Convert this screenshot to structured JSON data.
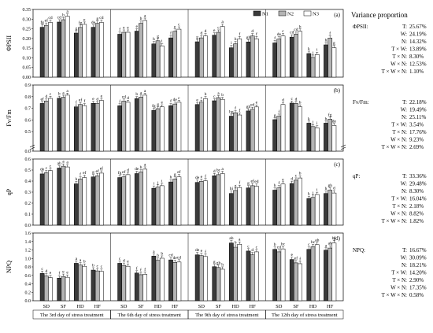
{
  "legend": [
    "N1",
    "N2",
    "N3"
  ],
  "variance_title": "Variance proportion",
  "groups": [
    "SD",
    "SF",
    "HD",
    "HF"
  ],
  "days": [
    "The 3rd day of stress treatment",
    "The 6th day of stress treatment",
    "The 9th day of stress treatment",
    "The 12th day of stress treatment"
  ],
  "colors": {
    "N1": "#3a3a3a",
    "N2": "#b4b4b4",
    "N3": "#ffffff"
  },
  "chart_data": [
    {
      "type": "bar",
      "tag": "(a)",
      "ylabel": "ΦPSII",
      "ylim": [
        0,
        0.35
      ],
      "yticks": [
        0.0,
        0.05,
        0.1,
        0.15,
        0.2,
        0.25,
        0.3,
        0.35
      ],
      "tick_labels": [
        "0.00",
        "0.05",
        "0.10",
        "0.15",
        "0.20",
        "0.25",
        "0.30",
        "0.35"
      ],
      "values": [
        [
          [
            0.258,
            0.268,
            0.283
          ],
          [
            0.285,
            0.297,
            0.315
          ],
          [
            0.228,
            0.257,
            0.273
          ],
          [
            0.258,
            0.278,
            0.283
          ]
        ],
        [
          [
            0.222,
            0.232,
            0.232
          ],
          [
            0.238,
            0.278,
            0.293
          ],
          [
            0.172,
            0.188,
            0.162
          ],
          [
            0.203,
            0.237,
            0.248
          ]
        ],
        [
          [
            0.183,
            0.203,
            0.213
          ],
          [
            0.217,
            0.232,
            0.262
          ],
          [
            0.152,
            0.172,
            0.198
          ],
          [
            0.182,
            0.213,
            0.198
          ]
        ],
        [
          [
            0.177,
            0.197,
            0.213
          ],
          [
            0.207,
            0.222,
            0.237
          ],
          [
            0.122,
            0.102,
            0.117
          ],
          [
            0.167,
            0.202,
            0.152
          ]
        ]
      ],
      "letters": [
        [
          [
            "fg",
            "ef",
            "cd"
          ],
          [
            "cd",
            "b",
            "a"
          ],
          [
            "g",
            "fg",
            "e"
          ],
          [
            "de",
            "g",
            "cd"
          ]
        ],
        [
          [
            "f",
            "e",
            "e"
          ],
          [
            "e",
            "b",
            "a"
          ],
          [
            "h",
            "g",
            "i"
          ],
          [
            "f",
            "e",
            "c"
          ]
        ],
        [
          [
            "g",
            "d",
            "d"
          ],
          [
            "e",
            "c",
            "a"
          ],
          [
            "i",
            "h",
            "f"
          ],
          [
            "gh",
            "d",
            "f"
          ]
        ],
        [
          [
            "f",
            "de",
            "c"
          ],
          [
            "cd",
            "cd",
            "b"
          ],
          [
            "k",
            "j",
            "i"
          ],
          [
            "h",
            "f",
            "g"
          ]
        ]
      ],
      "variance": [
        [
          "T:",
          "25.67%"
        ],
        [
          "W:",
          "24.19%"
        ],
        [
          "N:",
          "14.32%"
        ],
        [
          "T × W:",
          "13.89%"
        ],
        [
          "T × N:",
          "8.30%"
        ],
        [
          "W × N:",
          "12.53%"
        ],
        [
          "T × W × N:",
          "1.10%"
        ]
      ],
      "variance_label": "ΦPSII:"
    },
    {
      "type": "bar",
      "tag": "(b)",
      "ylabel": "Fv/Fm",
      "ylim": [
        0.4,
        0.9
      ],
      "axis_break": true,
      "yticks": [
        0.0,
        0.5,
        0.6,
        0.7,
        0.8,
        0.9
      ],
      "tick_labels": [
        "0.0",
        "0.5",
        "0.6",
        "0.7",
        "0.8",
        "0.9"
      ],
      "values": [
        [
          [
            0.742,
            0.763,
            0.785
          ],
          [
            0.787,
            0.795,
            0.813
          ],
          [
            0.713,
            0.733,
            0.723
          ],
          [
            0.743,
            0.742,
            0.768
          ]
        ],
        [
          [
            0.722,
            0.762,
            0.752
          ],
          [
            0.783,
            0.796,
            0.813
          ],
          [
            0.683,
            0.697,
            0.713
          ],
          [
            0.723,
            0.737,
            0.752
          ]
        ],
        [
          [
            0.733,
            0.753,
            0.783
          ],
          [
            0.765,
            0.792,
            0.777
          ],
          [
            0.633,
            0.662,
            0.643
          ],
          [
            0.678,
            0.692,
            0.712
          ]
        ],
        [
          [
            0.603,
            0.633,
            0.733
          ],
          [
            0.745,
            0.742,
            0.713
          ],
          [
            0.573,
            0.543,
            0.533
          ],
          [
            0.573,
            0.607,
            0.553
          ]
        ]
      ],
      "letters": [
        [
          [
            "ef",
            "d",
            "c"
          ],
          [
            "b",
            "a",
            "a"
          ],
          [
            "f",
            "ef",
            "f"
          ],
          [
            "e",
            "d",
            "e"
          ]
        ],
        [
          [
            "f",
            "cd",
            "d"
          ],
          [
            "b",
            "a",
            "a"
          ],
          [
            "fg",
            "g",
            "e"
          ],
          [
            "f",
            "de",
            "c"
          ]
        ],
        [
          [
            "e",
            "c",
            "b"
          ],
          [
            "c",
            "a",
            "b"
          ],
          [
            "hg",
            "f",
            "f"
          ],
          [
            "gh",
            "ed",
            "e"
          ]
        ],
        [
          [
            "g",
            "f",
            "d"
          ],
          [
            "c",
            "d",
            "b"
          ],
          [
            "k",
            "j",
            "i"
          ],
          [
            "h",
            "fg",
            "de"
          ]
        ]
      ],
      "variance": [
        [
          "T:",
          "22.18%"
        ],
        [
          "W:",
          "19.49%"
        ],
        [
          "N:",
          "25.11%"
        ],
        [
          "T × W:",
          "3.54%"
        ],
        [
          "T × N:",
          "17.76%"
        ],
        [
          "W × N:",
          "9.23%"
        ],
        [
          "T × W × N:",
          "2.69%"
        ]
      ],
      "variance_label": "Fv/Fm:"
    },
    {
      "type": "bar",
      "tag": "(c)",
      "ylabel": "qP",
      "ylim": [
        0,
        0.6
      ],
      "yticks": [
        0.0,
        0.1,
        0.2,
        0.3,
        0.4,
        0.5,
        0.6
      ],
      "tick_labels": [
        "0.0",
        "0.1",
        "0.2",
        "0.3",
        "0.4",
        "0.5",
        "0.6"
      ],
      "values": [
        [
          [
            0.465,
            0.475,
            0.495
          ],
          [
            0.518,
            0.535,
            0.528
          ],
          [
            0.375,
            0.418,
            0.432
          ],
          [
            0.438,
            0.448,
            0.472
          ]
        ],
        [
          [
            0.432,
            0.438,
            0.458
          ],
          [
            0.468,
            0.482,
            0.508
          ],
          [
            0.335,
            0.345,
            0.358
          ],
          [
            0.392,
            0.418,
            0.438
          ]
        ],
        [
          [
            0.388,
            0.398,
            0.402
          ],
          [
            0.448,
            0.458,
            0.468
          ],
          [
            0.288,
            0.315,
            0.342
          ],
          [
            0.338,
            0.358,
            0.353
          ]
        ],
        [
          [
            0.318,
            0.338,
            0.373
          ],
          [
            0.378,
            0.408,
            0.428
          ],
          [
            0.242,
            0.252,
            0.278
          ],
          [
            0.288,
            0.318,
            0.292
          ]
        ]
      ],
      "letters": [
        [
          [
            "de",
            "c",
            "c"
          ],
          [
            "ab",
            "a",
            "a"
          ],
          [
            "h",
            "f",
            "ef"
          ],
          [
            "g",
            "ef",
            "ef"
          ]
        ],
        [
          [
            "fg",
            "ef",
            "d"
          ],
          [
            "de",
            "b",
            "a"
          ],
          [
            "i",
            "j",
            "i"
          ],
          [
            "h",
            "g",
            "ef"
          ]
        ],
        [
          [
            "de",
            "e",
            "f"
          ],
          [
            "d",
            "bc",
            "a"
          ],
          [
            "hi",
            "g",
            "f"
          ],
          [
            "g",
            "ef",
            "ed"
          ]
        ],
        [
          [
            "h",
            "f",
            "e"
          ],
          [
            "d",
            "c",
            "b"
          ],
          [
            "k",
            "j",
            "i"
          ],
          [
            "h",
            "gh",
            "d"
          ]
        ]
      ],
      "variance": [
        [
          "T:",
          "33.36%"
        ],
        [
          "W:",
          "29.48%"
        ],
        [
          "N:",
          "8.30%"
        ],
        [
          "T × W:",
          "16.04%"
        ],
        [
          "T × N:",
          "2.18%"
        ],
        [
          "W × N:",
          "8.82%"
        ],
        [
          "T × W × N:",
          "1.82%"
        ]
      ],
      "variance_label": "qP:"
    },
    {
      "type": "bar",
      "tag": "(d)",
      "ylabel": "NPQ",
      "ylim": [
        0,
        1.6
      ],
      "yticks": [
        0.0,
        0.2,
        0.4,
        0.6,
        0.8,
        1.0,
        1.2,
        1.4,
        1.6
      ],
      "tick_labels": [
        "0.0",
        "0.2",
        "0.4",
        "0.6",
        "0.8",
        "1.0",
        "1.2",
        "1.4",
        "1.6"
      ],
      "values": [
        [
          [
            0.645,
            0.585,
            0.545
          ],
          [
            0.535,
            0.575,
            0.555
          ],
          [
            0.885,
            0.845,
            0.815
          ],
          [
            0.725,
            0.705,
            0.695
          ]
        ],
        [
          [
            0.885,
            0.835,
            0.815
          ],
          [
            0.655,
            0.615,
            0.625
          ],
          [
            1.055,
            0.955,
            1.005
          ],
          [
            0.965,
            0.905,
            0.915
          ]
        ],
        [
          [
            1.085,
            1.065,
            1.045
          ],
          [
            0.805,
            0.785,
            0.745
          ],
          [
            1.365,
            1.265,
            1.335
          ],
          [
            1.175,
            1.085,
            1.155
          ]
        ],
        [
          [
            1.215,
            1.155,
            1.225
          ],
          [
            0.975,
            0.895,
            0.875
          ],
          [
            1.215,
            1.275,
            1.325
          ],
          [
            1.195,
            1.245,
            1.365
          ]
        ]
      ],
      "letters": [
        [
          [
            "c",
            "d",
            "e"
          ],
          [
            "f",
            "e",
            "e"
          ],
          [
            "a",
            "a",
            "b"
          ],
          [
            "b",
            "c",
            "c"
          ]
        ],
        [
          [
            "c",
            "d",
            "e"
          ],
          [
            "f",
            "f",
            "f"
          ],
          [
            "a",
            "b",
            "b"
          ],
          [
            "cd",
            "de",
            "cd"
          ]
        ],
        [
          [
            "de",
            "e",
            "f"
          ],
          [
            "g",
            "gh",
            "h"
          ],
          [
            "ab",
            "b",
            "a"
          ],
          [
            "c",
            "d",
            "c"
          ]
        ],
        [
          [
            "b",
            "cd",
            "bc"
          ],
          [
            "e",
            "ef",
            "f"
          ],
          [
            "c",
            "bc",
            "ab"
          ],
          [
            "a",
            "ab",
            "bc"
          ]
        ]
      ],
      "variance": [
        [
          "T:",
          "16.67%"
        ],
        [
          "W:",
          "30.09%"
        ],
        [
          "N:",
          "18.21%"
        ],
        [
          "T × W:",
          "14.20%"
        ],
        [
          "T × N:",
          "2.90%"
        ],
        [
          "W × N:",
          "17.35%"
        ],
        [
          "T × W × N:",
          "0.58%"
        ]
      ],
      "variance_label": "NPQ:"
    }
  ]
}
